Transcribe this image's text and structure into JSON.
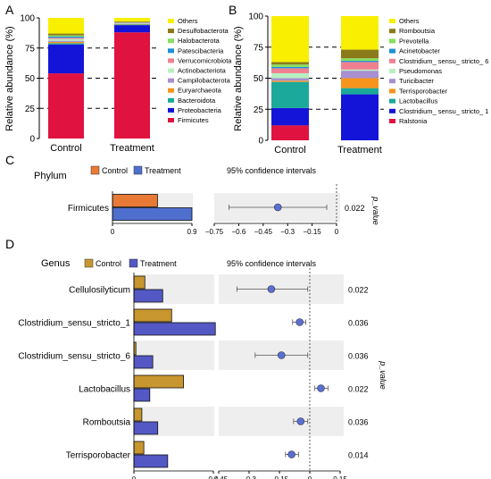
{
  "panels": {
    "A": {
      "letter": "A",
      "ylabel": "Relative abundance (%)",
      "yticks": [
        "0",
        "25",
        "50",
        "75",
        "100"
      ],
      "legend_title": ""
    },
    "B": {
      "letter": "B",
      "ylabel": "Relative abundance (%)",
      "yticks": [
        "0",
        "25",
        "50",
        "75",
        "100"
      ]
    },
    "C": {
      "letter": "C",
      "group_label": "Phylum",
      "legend": [
        "Control",
        "Treatment"
      ],
      "ci_title": "95% confidence intervals",
      "pvalue_label": "p_value",
      "bar_ticks": [
        "0",
        "0.9"
      ],
      "ci_ticks": [
        "−0.75",
        "−0.6",
        "−0.45",
        "−0.3",
        "−0.15",
        "0"
      ]
    },
    "D": {
      "letter": "D",
      "group_label": "Genus",
      "legend": [
        "Control",
        "Treatment"
      ],
      "ci_title": "95% confidence intervals",
      "pvalue_label": "p_value",
      "bar_ticks": [
        "0",
        "0.4"
      ],
      "ci_ticks": [
        "−0.45",
        "−0.3",
        "−0.15",
        "0",
        "0.15"
      ]
    }
  },
  "chart_data": [
    {
      "id": "A",
      "type": "bar",
      "stacked": true,
      "categories": [
        "Control",
        "Treatment"
      ],
      "ylim": [
        0,
        100
      ],
      "ylabel": "Relative abundance (%)",
      "dashed_lines": [
        25,
        50,
        75
      ],
      "series": [
        {
          "name": "Firmicutes",
          "color": "#e0123f",
          "values": [
            54,
            88
          ]
        },
        {
          "name": "Proteobacteria",
          "color": "#1414d8",
          "values": [
            24,
            6
          ]
        },
        {
          "name": "Bacteroidota",
          "color": "#1aa99a",
          "values": [
            1,
            0.5
          ]
        },
        {
          "name": "Euryarchaeota",
          "color": "#f7941d",
          "values": [
            1,
            0.3
          ]
        },
        {
          "name": "Campilobacterota",
          "color": "#a88fd0",
          "values": [
            1,
            0.3
          ]
        },
        {
          "name": "Actinobacteriota",
          "color": "#b7f0c0",
          "values": [
            1.5,
            0.5
          ]
        },
        {
          "name": "Verrucomicrobiota",
          "color": "#f08090",
          "values": [
            1,
            0.4
          ]
        },
        {
          "name": "Patescibacteria",
          "color": "#1e8fd8",
          "values": [
            1,
            0.2
          ]
        },
        {
          "name": "Halobacterota",
          "color": "#88e060",
          "values": [
            1,
            0.2
          ]
        },
        {
          "name": "Desulfobacterota",
          "color": "#8b7a1a",
          "values": [
            1.5,
            0.6
          ]
        },
        {
          "name": "Others",
          "color": "#f8f000",
          "values": [
            13,
            3
          ]
        }
      ]
    },
    {
      "id": "B",
      "type": "bar",
      "stacked": true,
      "categories": [
        "Control",
        "Treatment"
      ],
      "ylim": [
        0,
        100
      ],
      "ylabel": "Relative abundance (%)",
      "dashed_lines": [
        25,
        50,
        75
      ],
      "series": [
        {
          "name": "Ralstonia",
          "color": "#e0123f",
          "values": [
            12,
            0
          ]
        },
        {
          "name": "Clostridium_ sensu_ stricto_ 1",
          "color": "#1414d8",
          "values": [
            14,
            37
          ]
        },
        {
          "name": "Lactobacillus",
          "color": "#1aa99a",
          "values": [
            21,
            5
          ]
        },
        {
          "name": "Terrisporobacter",
          "color": "#f7941d",
          "values": [
            1,
            8
          ]
        },
        {
          "name": "Turicibacter",
          "color": "#a88fd0",
          "values": [
            2,
            6
          ]
        },
        {
          "name": "Pseudomonas",
          "color": "#b7f0c0",
          "values": [
            4,
            1
          ]
        },
        {
          "name": "Clostridium_ sensu_ stricto_ 6",
          "color": "#f08090",
          "values": [
            4,
            6
          ]
        },
        {
          "name": "Acinetobacter",
          "color": "#1e8fd8",
          "values": [
            1,
            1
          ]
        },
        {
          "name": "Prevotella",
          "color": "#88e060",
          "values": [
            2,
            2
          ]
        },
        {
          "name": "Romboutsia",
          "color": "#8b7a1a",
          "values": [
            2,
            7
          ]
        },
        {
          "name": "Others",
          "color": "#f8f000",
          "values": [
            37,
            27
          ]
        }
      ]
    },
    {
      "id": "C",
      "type": "bar",
      "orientation": "horizontal",
      "categories": [
        "Firmicutes"
      ],
      "xlim": [
        0,
        0.9
      ],
      "series": [
        {
          "name": "Control",
          "color": "#e87a35",
          "values": [
            0.51
          ]
        },
        {
          "name": "Treatment",
          "color": "#4f6fcf",
          "values": [
            0.9
          ]
        }
      ],
      "ci": {
        "xlim": [
          -0.75,
          0
        ],
        "points": [
          {
            "estimate": -0.36,
            "low": -0.66,
            "high": -0.06
          }
        ],
        "p_values": [
          "0.022"
        ]
      }
    },
    {
      "id": "D",
      "type": "bar",
      "orientation": "horizontal",
      "categories": [
        "Cellulosilyticum",
        "Clostridium_sensu_stricto_1",
        "Clostridium_sensu_stricto_6",
        "Lactobacillus",
        "Romboutsia",
        "Terrisporobacter"
      ],
      "xlim": [
        0,
        0.4
      ],
      "series": [
        {
          "name": "Control",
          "color": "#c8962e",
          "values": [
            0.055,
            0.19,
            0.01,
            0.25,
            0.04,
            0.05
          ]
        },
        {
          "name": "Treatment",
          "color": "#5358c4",
          "values": [
            0.145,
            0.41,
            0.095,
            0.08,
            0.12,
            0.17
          ]
        }
      ],
      "ci": {
        "xlim": [
          -0.45,
          0.15
        ],
        "points": [
          {
            "estimate": -0.19,
            "low": -0.36,
            "high": -0.01
          },
          {
            "estimate": -0.05,
            "low": -0.085,
            "high": -0.02
          },
          {
            "estimate": -0.14,
            "low": -0.27,
            "high": -0.01
          },
          {
            "estimate": 0.055,
            "low": 0.025,
            "high": 0.09
          },
          {
            "estimate": -0.045,
            "low": -0.08,
            "high": -0.01
          },
          {
            "estimate": -0.09,
            "low": -0.12,
            "high": -0.055
          }
        ],
        "p_values": [
          "0.022",
          "0.036",
          "0.036",
          "0.022",
          "0.036",
          "0.014"
        ]
      }
    }
  ]
}
